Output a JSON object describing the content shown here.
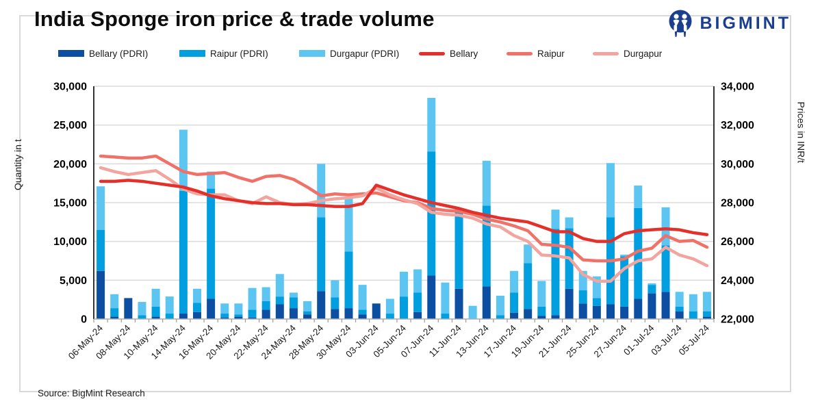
{
  "header": {
    "title": "India Sponge iron price & trade volume",
    "brand": "BIGMINT"
  },
  "source": {
    "text": "Source: BigMint Research"
  },
  "colors": {
    "bellary_pdri": "#0b4ea2",
    "raipur_pdri": "#019fe0",
    "durgapur_pdri": "#5cc5f1",
    "bellary_line": "#e4302a",
    "raipur_line": "#ef7168",
    "durgapur_line": "#f2a49e",
    "brand_navy": "#1b3e8e",
    "gridline": "#dcdcdc"
  },
  "legend": [
    {
      "label": "Bellary (PDRI)",
      "color": "#0b4ea2",
      "swatch": "bar"
    },
    {
      "label": "Raipur (PDRI)",
      "color": "#019fe0",
      "swatch": "bar"
    },
    {
      "label": "Durgapur (PDRI)",
      "color": "#5cc5f1",
      "swatch": "bar"
    },
    {
      "label": "Bellary",
      "color": "#e4302a",
      "swatch": "line"
    },
    {
      "label": "Raipur",
      "color": "#ef7168",
      "swatch": "line"
    },
    {
      "label": "Durgapur",
      "color": "#f2a49e",
      "swatch": "line"
    }
  ],
  "chart_data": {
    "type": "bar+line combo (stacked volume bars, price lines)",
    "left_axis": {
      "label": "Quantity in t",
      "min": 0,
      "max": 30000,
      "step": 5000
    },
    "right_axis": {
      "label": "Prices in INR/t",
      "min": 22000,
      "max": 34000,
      "step": 2000
    },
    "x_labels_every": 2,
    "categories": [
      "06-May-24",
      "07-May-24",
      "08-May-24",
      "09-May-24",
      "10-May-24",
      "13-May-24",
      "14-May-24",
      "15-May-24",
      "16-May-24",
      "17-May-24",
      "20-May-24",
      "21-May-24",
      "22-May-24",
      "23-May-24",
      "24-May-24",
      "27-May-24",
      "28-May-24",
      "29-May-24",
      "30-May-24",
      "31-May-24",
      "03-Jun-24",
      "04-Jun-24",
      "05-Jun-24",
      "06-Jun-24",
      "07-Jun-24",
      "10-Jun-24",
      "11-Jun-24",
      "12-Jun-24",
      "13-Jun-24",
      "14-Jun-24",
      "17-Jun-24",
      "18-Jun-24",
      "19-Jun-24",
      "20-Jun-24",
      "21-Jun-24",
      "24-Jun-24",
      "25-Jun-24",
      "26-Jun-24",
      "27-Jun-24",
      "28-Jun-24",
      "01-Jul-24",
      "02-Jul-24",
      "03-Jul-24",
      "04-Jul-24",
      "05-Jul-24"
    ],
    "bar_series": [
      {
        "name": "Bellary (PDRI)",
        "color": "#0b4ea2",
        "values": [
          6200,
          300,
          2700,
          0,
          300,
          0,
          700,
          900,
          2600,
          200,
          300,
          200,
          1200,
          1900,
          1400,
          600,
          3600,
          1300,
          1400,
          600,
          2000,
          0,
          0,
          900,
          5600,
          0,
          3900,
          0,
          4200,
          0,
          800,
          1300,
          400,
          500,
          3900,
          2000,
          1700,
          1900,
          1600,
          2600,
          3300,
          3500,
          1000,
          0,
          300
        ]
      },
      {
        "name": "Raipur (PDRI)",
        "color": "#019fe0",
        "values": [
          5300,
          1100,
          0,
          500,
          1300,
          700,
          15800,
          1200,
          14200,
          500,
          300,
          1000,
          1100,
          1000,
          1400,
          400,
          9500,
          1500,
          7300,
          600,
          0,
          700,
          2900,
          2500,
          16000,
          700,
          9900,
          0,
          10400,
          500,
          2600,
          5900,
          1200,
          11100,
          7800,
          1700,
          1000,
          11200,
          6500,
          11700,
          1100,
          6000,
          600,
          1000,
          700
        ]
      },
      {
        "name": "Durgapur (PDRI)",
        "color": "#5cc5f1",
        "values": [
          5600,
          1800,
          0,
          1700,
          2300,
          2200,
          7900,
          1800,
          2200,
          1300,
          1400,
          2800,
          1800,
          2900,
          600,
          1300,
          6900,
          2200,
          7100,
          3200,
          0,
          1900,
          3200,
          3000,
          6900,
          4000,
          400,
          1700,
          5800,
          2500,
          2800,
          2400,
          3300,
          2500,
          1400,
          2500,
          2800,
          7000,
          200,
          2900,
          200,
          4900,
          1900,
          2200,
          2500
        ]
      }
    ],
    "line_series": [
      {
        "name": "Raipur",
        "color": "#ef7168",
        "values": [
          30400,
          30350,
          30300,
          30300,
          30400,
          30000,
          29600,
          29450,
          29500,
          29550,
          29300,
          29100,
          29350,
          29400,
          29200,
          28800,
          28350,
          28450,
          28400,
          28450,
          28500,
          28300,
          28100,
          28000,
          27700,
          27600,
          27550,
          27400,
          27150,
          27000,
          26800,
          26550,
          25850,
          25800,
          25700,
          25050,
          25000,
          25000,
          25100,
          25500,
          25650,
          26300,
          26000,
          26050,
          25700
        ]
      },
      {
        "name": "Durgapur",
        "color": "#f2a49e",
        "values": [
          29800,
          29600,
          29450,
          29550,
          29650,
          29200,
          28700,
          28450,
          28400,
          28400,
          28100,
          27950,
          28300,
          28000,
          27900,
          27950,
          28100,
          28200,
          28250,
          28350,
          28750,
          28400,
          28150,
          27950,
          27500,
          27400,
          27350,
          27200,
          26900,
          26750,
          26300,
          26000,
          25300,
          25250,
          25150,
          24300,
          23950,
          23950,
          24600,
          25000,
          25100,
          25700,
          25300,
          25100,
          24750
        ]
      },
      {
        "name": "Bellary",
        "color": "#e4302a",
        "values": [
          29100,
          29100,
          29150,
          29100,
          29000,
          28900,
          28800,
          28600,
          28350,
          28200,
          28100,
          28000,
          27950,
          27950,
          27900,
          27900,
          27850,
          27800,
          27800,
          27950,
          28900,
          28650,
          28400,
          28200,
          28000,
          27850,
          27700,
          27500,
          27350,
          27200,
          27100,
          27000,
          26750,
          26500,
          26500,
          26150,
          26000,
          26000,
          26400,
          26550,
          26600,
          26650,
          26600,
          26450,
          26350
        ]
      }
    ]
  }
}
